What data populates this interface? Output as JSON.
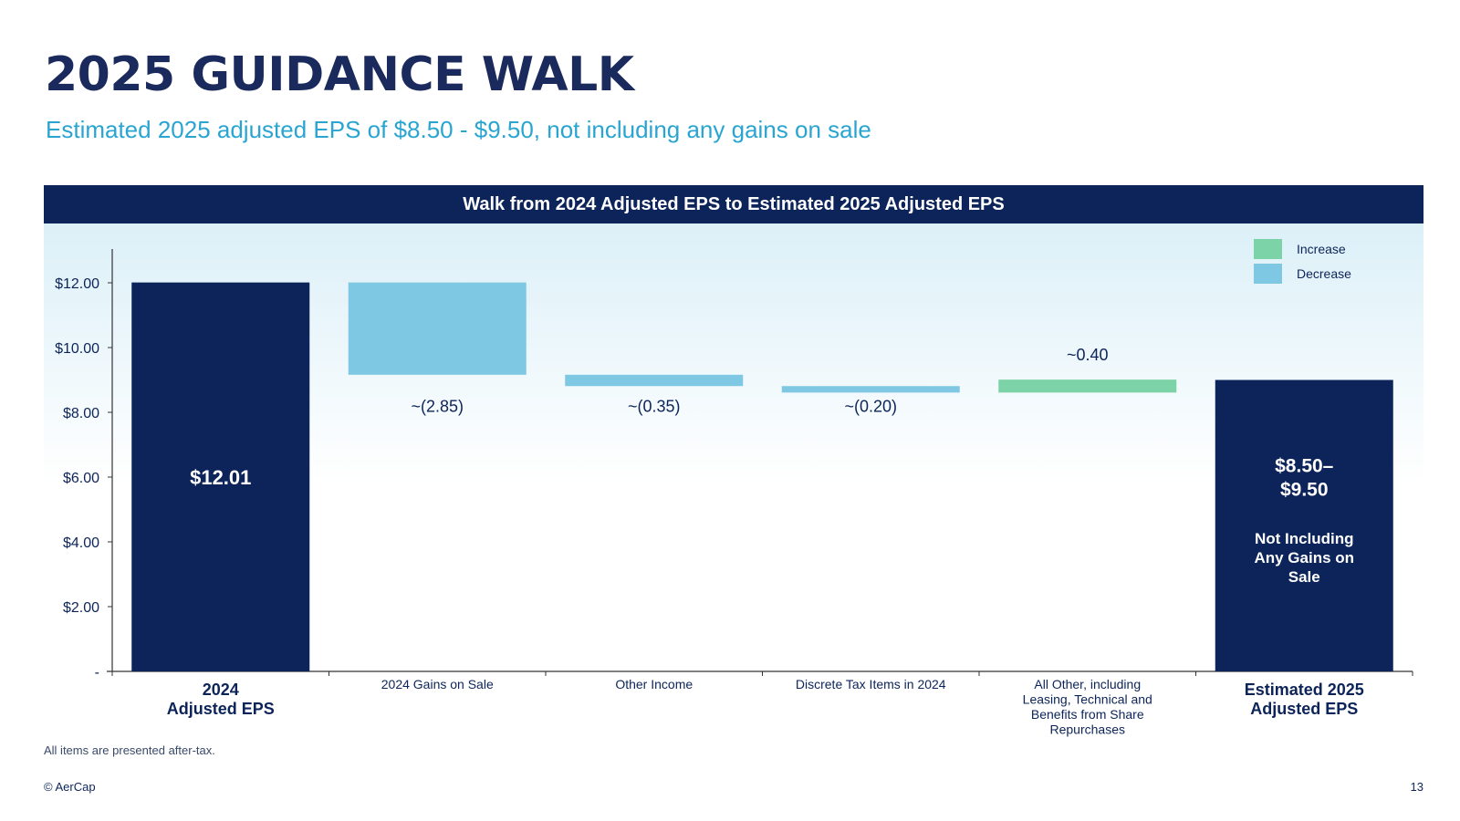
{
  "title": "2025 GUIDANCE WALK",
  "subtitle": "Estimated 2025 adjusted EPS of $8.50 - $9.50, not including any gains on sale",
  "chart_header": "Walk from 2024 Adjusted EPS to Estimated 2025 Adjusted EPS",
  "legend": {
    "increase_label": "Increase",
    "decrease_label": "Decrease",
    "increase_color": "#7dd3a8",
    "decrease_color": "#7ec8e3"
  },
  "footnote": "All items are presented after-tax.",
  "copyright": "© AerCap",
  "page_number": "13",
  "chart_data": {
    "type": "waterfall",
    "title": "Walk from 2024 Adjusted EPS to Estimated 2025 Adjusted EPS",
    "ylim": [
      0,
      13
    ],
    "y_ticks": [
      {
        "value": 0,
        "label": "-"
      },
      {
        "value": 2,
        "label": "$2.00"
      },
      {
        "value": 4,
        "label": "$4.00"
      },
      {
        "value": 6,
        "label": "$6.00"
      },
      {
        "value": 8,
        "label": "$8.00"
      },
      {
        "value": 10,
        "label": "$10.00"
      },
      {
        "value": 12,
        "label": "$12.00"
      }
    ],
    "bars": [
      {
        "category": "2024\nAdjusted EPS",
        "kind": "total",
        "start": 0,
        "end": 12.01,
        "label": "$12.01",
        "bold_category": true
      },
      {
        "category": "2024 Gains on Sale",
        "kind": "decrease",
        "start": 12.01,
        "end": 9.16,
        "label": "~(2.85)",
        "bold_category": false
      },
      {
        "category": "Other Income",
        "kind": "decrease",
        "start": 9.16,
        "end": 8.81,
        "label": "~(0.35)",
        "bold_category": false
      },
      {
        "category": "Discrete Tax Items in 2024",
        "kind": "decrease",
        "start": 8.81,
        "end": 8.61,
        "label": "~(0.20)",
        "bold_category": false
      },
      {
        "category": "All Other, including\nLeasing, Technical and\nBenefits from Share\nRepurchases",
        "kind": "increase",
        "start": 8.61,
        "end": 9.01,
        "label": "~0.40",
        "bold_category": false
      },
      {
        "category": "Estimated 2025\nAdjusted EPS",
        "kind": "total",
        "start": 0,
        "end": 9.0,
        "label": "$8.50–\n$9.50",
        "sublabel": "Not Including\nAny Gains on\nSale",
        "bold_category": true
      }
    ],
    "colors": {
      "total": "#0c2459",
      "increase": "#7dd3a8",
      "decrease": "#7ec8e3"
    }
  }
}
